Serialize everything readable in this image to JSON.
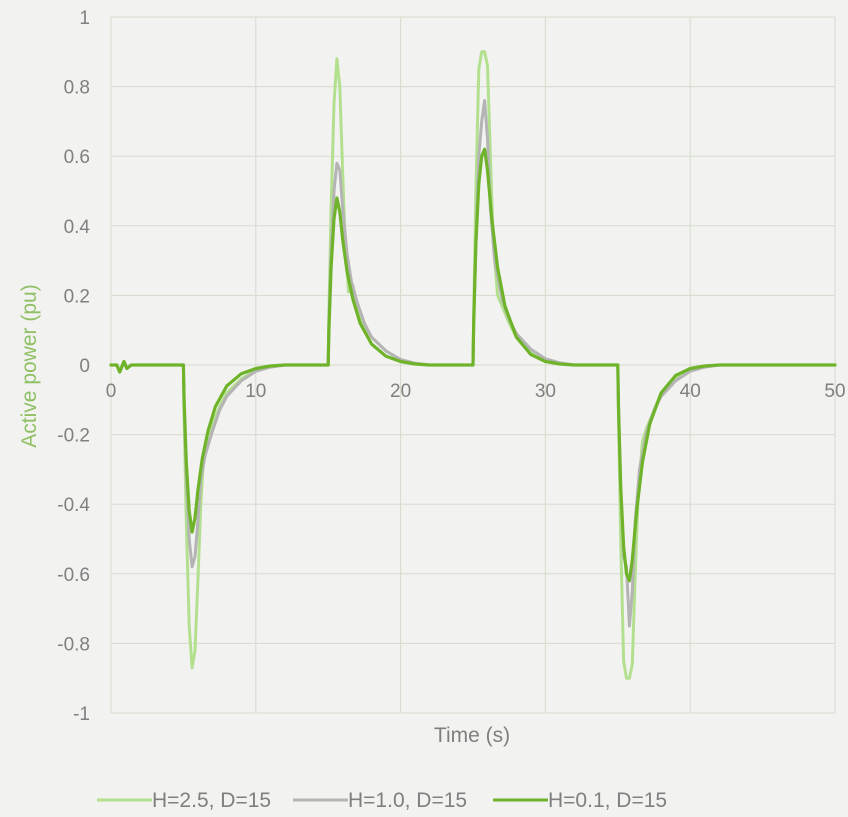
{
  "chart_data": {
    "type": "line",
    "title": "",
    "xlabel": "Time (s)",
    "ylabel": "Active power (pu)",
    "xlim": [
      0,
      50
    ],
    "ylim": [
      -1,
      1
    ],
    "xticks": [
      0,
      10,
      20,
      30,
      40,
      50
    ],
    "yticks": [
      1,
      0.8,
      0.6,
      0.4,
      0.2,
      0,
      -0.2,
      -0.4,
      -0.6,
      -0.8,
      -1
    ],
    "grid": true,
    "legend_position": "bottom",
    "series": [
      {
        "name": "H=2.5, D=15",
        "color": "#b3e08f",
        "x": [
          0,
          0.4,
          0.6,
          0.9,
          1.1,
          1.4,
          2,
          5,
          5.05,
          5.2,
          5.4,
          5.6,
          5.8,
          6.0,
          6.2,
          6.4,
          6.7,
          7.0,
          7.5,
          8,
          9,
          10,
          11,
          12,
          15,
          15.05,
          15.2,
          15.4,
          15.6,
          15.8,
          16.0,
          16.2,
          16.4,
          16.7,
          17.0,
          17.5,
          18,
          19,
          20,
          21,
          22,
          25,
          25.05,
          25.2,
          25.4,
          25.6,
          25.8,
          26.0,
          26.2,
          26.4,
          26.7,
          27.0,
          27.5,
          28,
          29,
          30,
          31,
          32,
          35,
          35.05,
          35.2,
          35.4,
          35.6,
          35.8,
          36.0,
          36.2,
          36.4,
          36.7,
          37.0,
          37.5,
          38,
          39,
          40,
          41,
          42,
          45,
          50
        ],
        "y": [
          0,
          0,
          -0.02,
          0.01,
          -0.01,
          0,
          0,
          0,
          -0.15,
          -0.45,
          -0.75,
          -0.87,
          -0.82,
          -0.62,
          -0.4,
          -0.26,
          -0.2,
          -0.17,
          -0.12,
          -0.08,
          -0.04,
          -0.015,
          -0.005,
          0,
          0,
          0.15,
          0.45,
          0.75,
          0.88,
          0.8,
          0.55,
          0.32,
          0.21,
          0.23,
          0.16,
          0.11,
          0.08,
          0.04,
          0.015,
          0.005,
          0,
          0,
          0.15,
          0.5,
          0.85,
          0.9,
          0.9,
          0.86,
          0.6,
          0.35,
          0.2,
          0.17,
          0.12,
          0.08,
          0.04,
          0.015,
          0.005,
          0,
          0,
          -0.15,
          -0.5,
          -0.85,
          -0.9,
          -0.9,
          -0.86,
          -0.6,
          -0.38,
          -0.22,
          -0.18,
          -0.13,
          -0.08,
          -0.04,
          -0.015,
          -0.005,
          0,
          0,
          0
        ]
      },
      {
        "name": "H=1.0, D=15",
        "color": "#b4b4b4",
        "x": [
          0,
          0.4,
          0.6,
          0.9,
          1.1,
          1.4,
          2,
          5,
          5.05,
          5.2,
          5.4,
          5.6,
          5.8,
          6.0,
          6.2,
          6.5,
          7.0,
          7.5,
          8,
          9,
          10,
          11,
          12,
          15,
          15.05,
          15.2,
          15.4,
          15.6,
          15.8,
          16.0,
          16.3,
          16.6,
          17.0,
          17.5,
          18,
          19,
          20,
          21,
          22,
          25,
          25.05,
          25.2,
          25.4,
          25.6,
          25.8,
          26.0,
          26.2,
          26.5,
          27.0,
          27.5,
          28,
          29,
          30,
          31,
          32,
          35,
          35.05,
          35.2,
          35.4,
          35.6,
          35.8,
          36.0,
          36.2,
          36.5,
          37.0,
          37.5,
          38,
          39,
          40,
          41,
          42,
          45,
          50
        ],
        "y": [
          0,
          0,
          -0.02,
          0.01,
          -0.01,
          0,
          0,
          0,
          -0.12,
          -0.32,
          -0.5,
          -0.58,
          -0.55,
          -0.45,
          -0.33,
          -0.26,
          -0.19,
          -0.13,
          -0.09,
          -0.045,
          -0.018,
          -0.006,
          0,
          0,
          0.12,
          0.32,
          0.5,
          0.58,
          0.56,
          0.45,
          0.32,
          0.24,
          0.18,
          0.12,
          0.08,
          0.04,
          0.016,
          0.005,
          0,
          0,
          0.12,
          0.35,
          0.6,
          0.7,
          0.76,
          0.65,
          0.45,
          0.3,
          0.19,
          0.13,
          0.09,
          0.045,
          0.018,
          0.006,
          0,
          0,
          -0.12,
          -0.35,
          -0.55,
          -0.58,
          -0.75,
          -0.65,
          -0.45,
          -0.3,
          -0.19,
          -0.13,
          -0.09,
          -0.045,
          -0.018,
          -0.006,
          0,
          0,
          0
        ]
      },
      {
        "name": "H=0.1, D=15",
        "color": "#6fb32a",
        "x": [
          0,
          0.4,
          0.6,
          0.9,
          1.1,
          1.4,
          2,
          5,
          5.05,
          5.2,
          5.4,
          5.6,
          5.8,
          6.0,
          6.3,
          6.7,
          7.2,
          8,
          9,
          10,
          11,
          12,
          15,
          15.05,
          15.2,
          15.4,
          15.6,
          15.8,
          16.0,
          16.3,
          16.7,
          17.2,
          18,
          19,
          20,
          21,
          22,
          25,
          25.05,
          25.2,
          25.4,
          25.6,
          25.8,
          26.0,
          26.3,
          26.7,
          27.2,
          28,
          29,
          30,
          31,
          32,
          35,
          35.05,
          35.2,
          35.4,
          35.6,
          35.8,
          36.0,
          36.3,
          36.7,
          37.2,
          38,
          39,
          40,
          41,
          42,
          45,
          50
        ],
        "y": [
          0,
          0,
          -0.02,
          0.01,
          -0.01,
          0,
          0,
          0,
          -0.1,
          -0.28,
          -0.42,
          -0.48,
          -0.44,
          -0.36,
          -0.27,
          -0.19,
          -0.12,
          -0.06,
          -0.025,
          -0.01,
          -0.003,
          0,
          0,
          0.1,
          0.28,
          0.42,
          0.48,
          0.44,
          0.36,
          0.27,
          0.19,
          0.12,
          0.06,
          0.025,
          0.01,
          0.003,
          0,
          0,
          0.12,
          0.35,
          0.52,
          0.6,
          0.62,
          0.56,
          0.42,
          0.28,
          0.17,
          0.08,
          0.03,
          0.01,
          0.003,
          0,
          0,
          -0.12,
          -0.35,
          -0.52,
          -0.6,
          -0.62,
          -0.56,
          -0.42,
          -0.28,
          -0.17,
          -0.08,
          -0.03,
          -0.01,
          -0.003,
          0,
          0,
          0
        ]
      }
    ]
  }
}
